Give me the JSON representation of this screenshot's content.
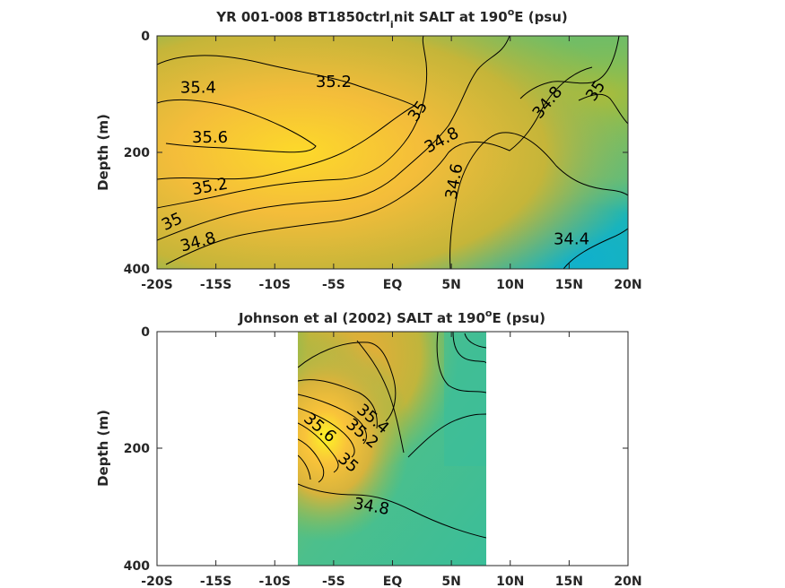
{
  "chart_data": [
    {
      "type": "heatmap",
      "title_main": "YR 001-008 BT1850ctrl",
      "title_sub": "i",
      "title_rest": "nit SALT at 190",
      "title_sup": "o",
      "title_end": "E (psu)",
      "ylabel": "Depth (m)",
      "x_ticks": [
        "-20S",
        "-15S",
        "-10S",
        "-5S",
        "EQ",
        "5N",
        "10N",
        "15N",
        "20N"
      ],
      "y_ticks": [
        "0",
        "200",
        "400"
      ],
      "xlim": [
        -20,
        20
      ],
      "ylim": [
        0,
        400
      ],
      "data_extent": [
        -20,
        20
      ],
      "contour_labels": [
        {
          "text": "35.4",
          "x": -16.5,
          "y": 90
        },
        {
          "text": "35.2",
          "x": -5,
          "y": 80
        },
        {
          "text": "35.6",
          "x": -15.5,
          "y": 175
        },
        {
          "text": "35",
          "x": 2.2,
          "y": 130
        },
        {
          "text": "34.8",
          "x": 4.2,
          "y": 180
        },
        {
          "text": "34.8",
          "x": 13.2,
          "y": 115
        },
        {
          "text": "35",
          "x": 17.3,
          "y": 95
        },
        {
          "text": "35.2",
          "x": -15.5,
          "y": 260
        },
        {
          "text": "35",
          "x": -18.7,
          "y": 320
        },
        {
          "text": "34.8",
          "x": -16.5,
          "y": 355
        },
        {
          "text": "34.6",
          "x": 5.3,
          "y": 250
        },
        {
          "text": "34.4",
          "x": 15.2,
          "y": 350
        }
      ]
    },
    {
      "type": "heatmap",
      "title_main": "Johnson et al (2002) SALT at 190",
      "title_sup": "o",
      "title_end": "E (psu)",
      "ylabel": "Depth (m)",
      "x_ticks": [
        "-20S",
        "-15S",
        "-10S",
        "-5S",
        "EQ",
        "5N",
        "10N",
        "15N",
        "20N"
      ],
      "y_ticks": [
        "0",
        "200",
        "400"
      ],
      "xlim": [
        -20,
        20
      ],
      "ylim": [
        0,
        400
      ],
      "data_extent": [
        -8,
        8
      ],
      "contour_labels": [
        {
          "text": "34.8",
          "x": -1.8,
          "y": 300
        },
        {
          "text": "35",
          "x": -3.8,
          "y": 225
        },
        {
          "text": "35.2",
          "x": -2.6,
          "y": 175
        },
        {
          "text": "35.4",
          "x": -1.7,
          "y": 150
        },
        {
          "text": "35.6",
          "x": -6.2,
          "y": 165
        }
      ]
    }
  ]
}
